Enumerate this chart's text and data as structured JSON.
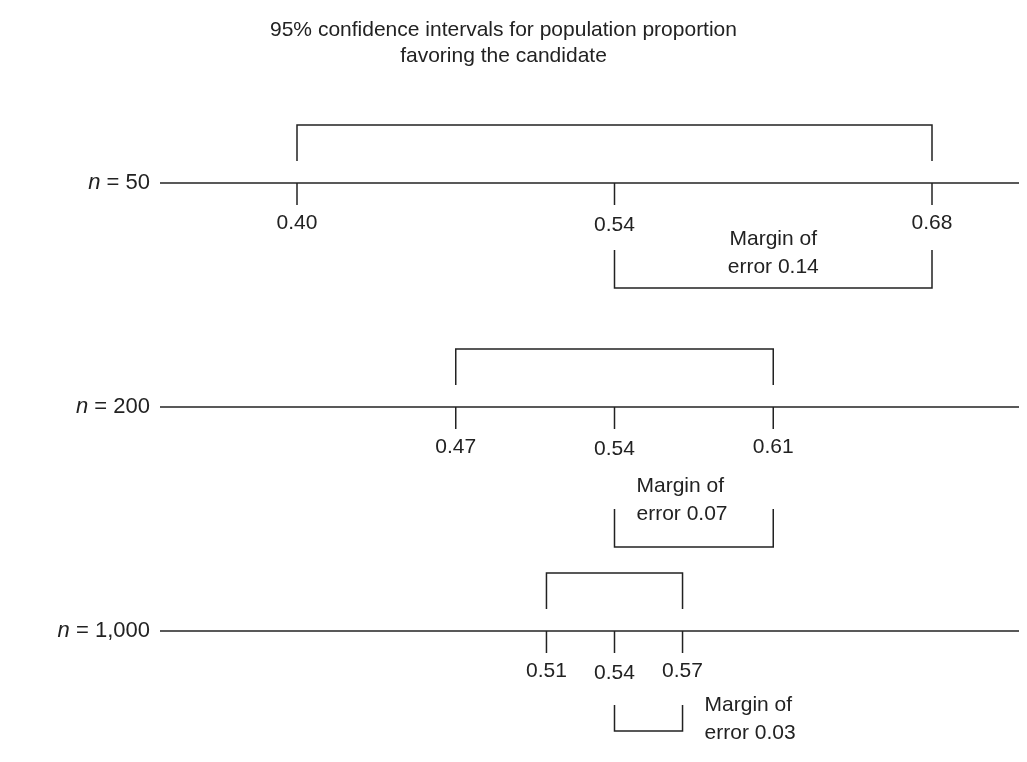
{
  "chart_data": {
    "type": "other",
    "title": "95% confidence intervals for population proportion favoring the candidate",
    "categories": [
      "n = 50",
      "n = 200",
      "n = 1,000"
    ],
    "series": [
      {
        "values": [
          0.4,
          0.47,
          0.51
        ],
        "value_labels": [
          "0.40",
          "0.47",
          "0.51"
        ]
      },
      {
        "values": [
          0.54,
          0.54,
          0.54
        ],
        "value_labels": [
          "0.54",
          "0.54",
          "0.54"
        ]
      },
      {
        "values": [
          0.68,
          0.61,
          0.57
        ],
        "value_labels": [
          "0.68",
          "0.61",
          "0.57"
        ]
      }
    ],
    "annotations": [
      "Margin of error 0.14",
      "Margin of error 0.07",
      "Margin of error 0.03"
    ]
  }
}
